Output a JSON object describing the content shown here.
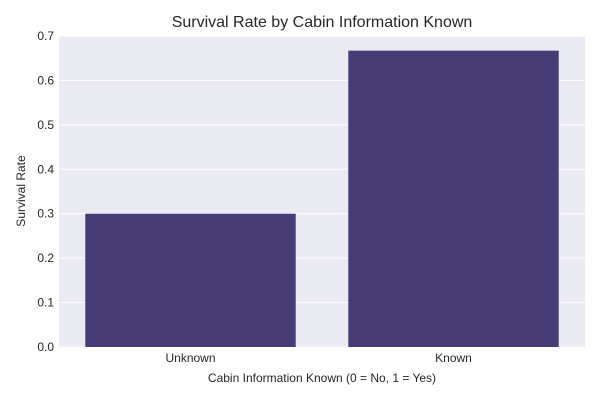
{
  "chart_data": {
    "type": "bar",
    "title": "Survival Rate by Cabin Information Known",
    "xlabel": "Cabin Information Known (0 = No, 1 = Yes)",
    "ylabel": "Survival Rate",
    "categories": [
      "Unknown",
      "Known"
    ],
    "values": [
      0.3,
      0.667
    ],
    "ylim": [
      0,
      0.7
    ],
    "yticks": [
      "0.0",
      "0.1",
      "0.2",
      "0.3",
      "0.4",
      "0.5",
      "0.6",
      "0.7"
    ],
    "grid": true,
    "colors": {
      "bar": "#483c77",
      "plot_background": "#eaeaf2",
      "grid": "#ffffff"
    }
  }
}
